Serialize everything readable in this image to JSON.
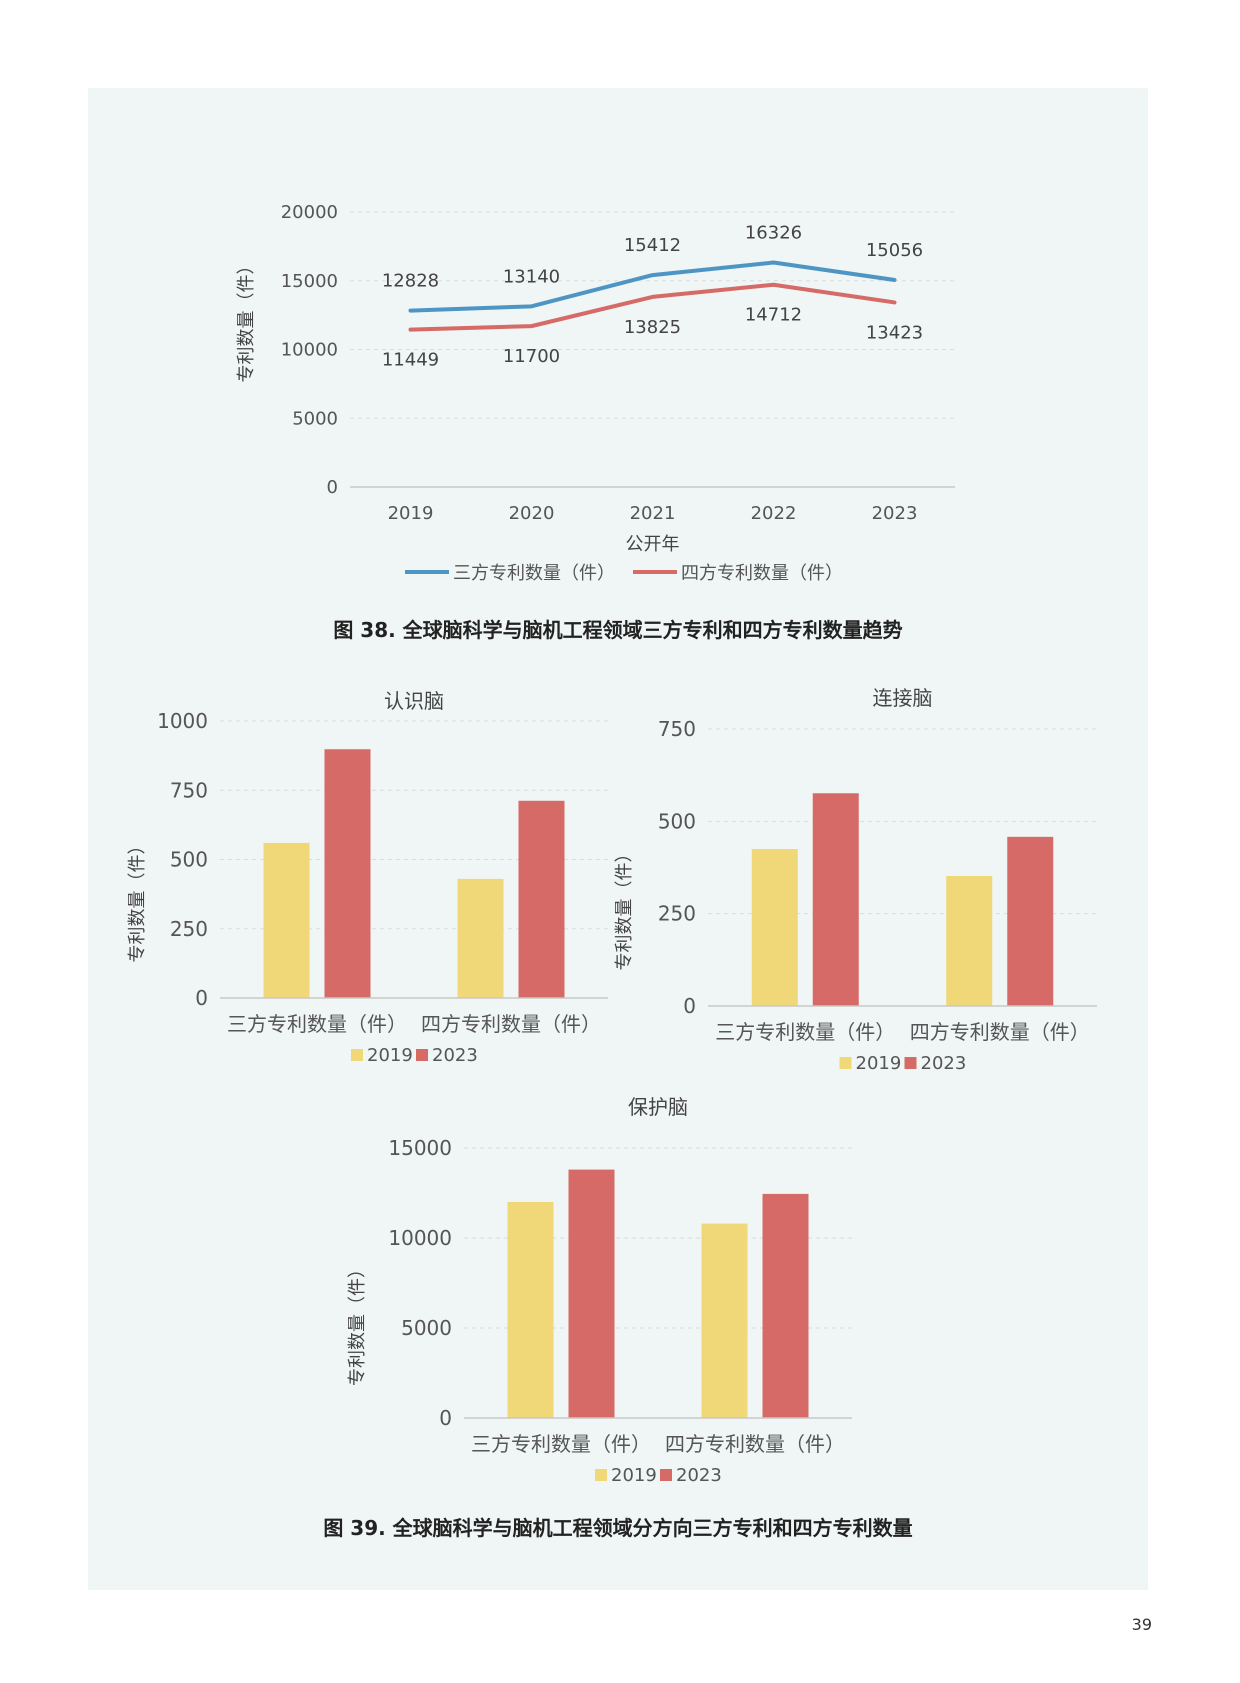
{
  "page_number": "39",
  "captions": {
    "fig38": "图 38. 全球脑科学与脑机工程领域三方专利和四方专利数量趋势",
    "fig39": "图 39. 全球脑科学与脑机工程领域分方向三方专利和四方专利数量"
  },
  "colors": {
    "triadic": "#4e95c4",
    "quad": "#d56a66",
    "y2019": "#f0d777",
    "y2023": "#d56a66",
    "grid": "#dcdcdc",
    "axis": "#c8c8c8"
  },
  "chart_data": [
    {
      "type": "line",
      "title": "",
      "xlabel": "公开年",
      "ylabel": "专利数量（件）",
      "x": [
        "2019",
        "2020",
        "2021",
        "2022",
        "2023"
      ],
      "ylim": [
        0,
        20000
      ],
      "yticks": [
        "0",
        "5000",
        "10000",
        "15000",
        "20000"
      ],
      "grid": true,
      "legend": "bottom",
      "series": [
        {
          "name": "三方专利数量（件）",
          "values": [
            12828,
            13140,
            15412,
            16326,
            15056
          ]
        },
        {
          "name": "四方专利数量（件）",
          "values": [
            11449,
            11700,
            13825,
            14712,
            13423
          ]
        }
      ]
    },
    {
      "type": "bar",
      "title": "认识脑",
      "ylabel": "专利数量（件）",
      "categories": [
        "三方专利数量（件）",
        "四方专利数量（件）"
      ],
      "ylim": [
        0,
        1000
      ],
      "yticks": [
        "0",
        "250",
        "500",
        "750",
        "1000"
      ],
      "legend": "bottom",
      "series": [
        {
          "name": "2019",
          "values": [
            560,
            430
          ]
        },
        {
          "name": "2023",
          "values": [
            898,
            712
          ]
        }
      ]
    },
    {
      "type": "bar",
      "title": "连接脑",
      "ylabel": "专利数量（件）",
      "categories": [
        "三方专利数量（件）",
        "四方专利数量（件）"
      ],
      "ylim": [
        0,
        750
      ],
      "yticks": [
        "0",
        "250",
        "500",
        "750"
      ],
      "legend": "bottom",
      "series": [
        {
          "name": "2019",
          "values": [
            425,
            352
          ]
        },
        {
          "name": "2023",
          "values": [
            576,
            458
          ]
        }
      ]
    },
    {
      "type": "bar",
      "title": "保护脑",
      "ylabel": "专利数量（件）",
      "categories": [
        "三方专利数量（件）",
        "四方专利数量（件）"
      ],
      "ylim": [
        0,
        15000
      ],
      "yticks": [
        "0",
        "5000",
        "10000",
        "15000"
      ],
      "legend": "bottom",
      "series": [
        {
          "name": "2019",
          "values": [
            12000,
            10800
          ]
        },
        {
          "name": "2023",
          "values": [
            13800,
            12450
          ]
        }
      ]
    }
  ]
}
